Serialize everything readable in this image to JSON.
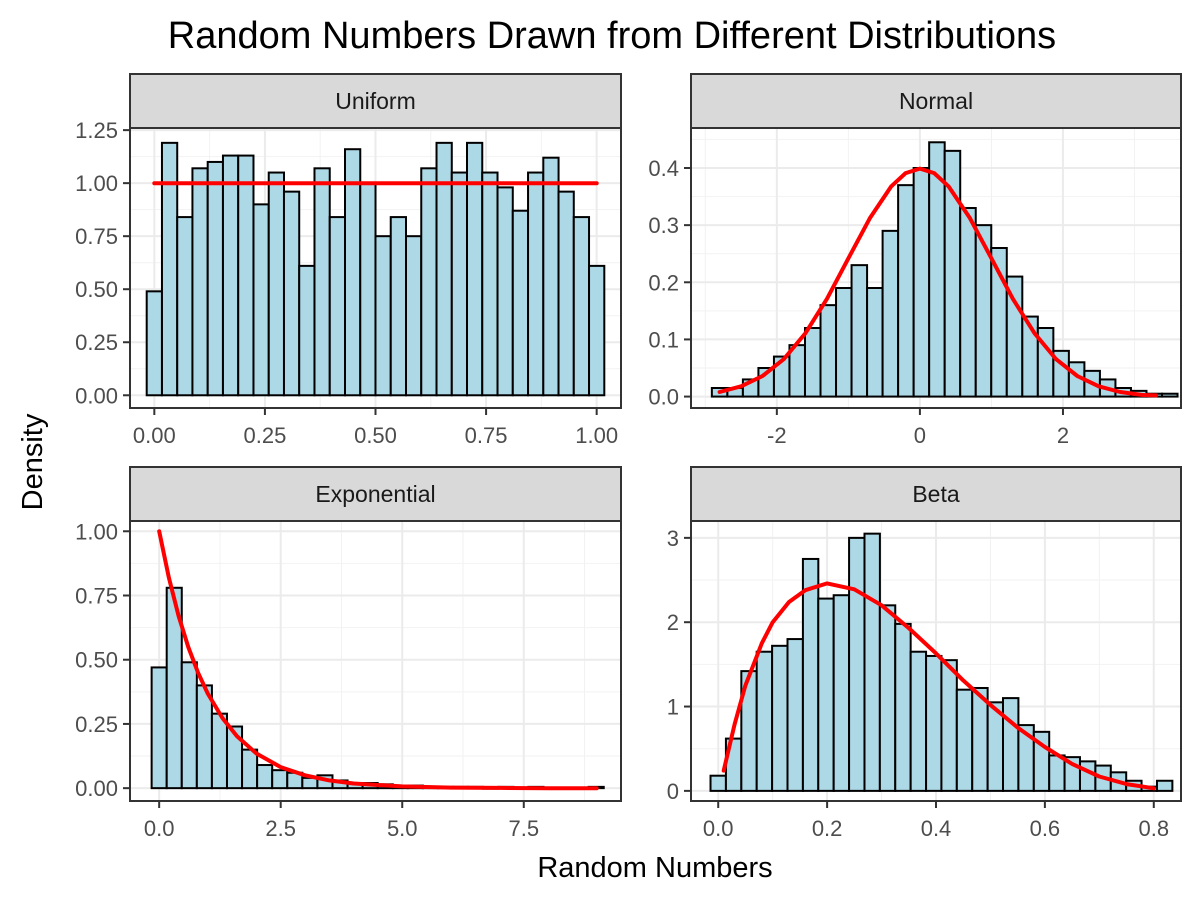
{
  "title": "Random Numbers Drawn from Different Distributions",
  "xlabel": "Random Numbers",
  "ylabel": "Density",
  "colors": {
    "bar_fill": "#add8e6",
    "bar_outline": "#000000",
    "density_line": "#ff0000",
    "strip_fill": "#d9d9d9"
  },
  "chart_data": [
    {
      "type": "bar",
      "panel": "Uniform",
      "xlim": [
        -0.055,
        1.055
      ],
      "ylim": [
        -0.06,
        1.26
      ],
      "x_ticks": [
        0.0,
        0.25,
        0.5,
        0.75,
        1.0
      ],
      "x_tick_labels": [
        "0.00",
        "0.25",
        "0.50",
        "0.75",
        "1.00"
      ],
      "y_ticks": [
        0.0,
        0.25,
        0.5,
        0.75,
        1.0,
        1.25
      ],
      "y_tick_labels": [
        "0.00",
        "0.25",
        "0.50",
        "0.75",
        "1.00",
        "1.25"
      ],
      "bin_centers": [
        0.0,
        0.0345,
        0.069,
        0.1034,
        0.1379,
        0.1724,
        0.2069,
        0.2414,
        0.2759,
        0.3103,
        0.3448,
        0.3793,
        0.4138,
        0.4483,
        0.4828,
        0.5172,
        0.5517,
        0.5862,
        0.6207,
        0.6552,
        0.6897,
        0.7241,
        0.7586,
        0.7931,
        0.8276,
        0.8621,
        0.8966,
        0.931,
        0.9655,
        1.0
      ],
      "values": [
        0.49,
        1.19,
        0.84,
        1.07,
        1.1,
        1.13,
        1.13,
        0.9,
        1.05,
        0.96,
        0.61,
        1.07,
        0.84,
        1.16,
        1.0,
        0.75,
        0.84,
        0.75,
        1.07,
        1.19,
        1.05,
        1.19,
        1.05,
        0.98,
        0.87,
        1.05,
        1.12,
        0.96,
        0.84,
        0.61
      ],
      "density_x": [
        0.0,
        1.0
      ],
      "density_y": [
        1.0,
        1.0
      ]
    },
    {
      "type": "bar",
      "panel": "Normal",
      "xlim": [
        -3.2,
        3.65
      ],
      "ylim": [
        -0.02,
        0.47
      ],
      "x_ticks": [
        -2,
        0,
        2
      ],
      "x_tick_labels": [
        "-2",
        "0",
        "2"
      ],
      "y_ticks": [
        0.0,
        0.1,
        0.2,
        0.3,
        0.4
      ],
      "y_tick_labels": [
        "0.0",
        "0.1",
        "0.2",
        "0.3",
        "0.4"
      ],
      "bin_centers": [
        -2.8,
        -2.583,
        -2.366,
        -2.149,
        -1.932,
        -1.715,
        -1.498,
        -1.281,
        -1.064,
        -0.847,
        -0.63,
        -0.413,
        -0.196,
        0.021,
        0.238,
        0.455,
        0.672,
        0.889,
        1.106,
        1.323,
        1.54,
        1.757,
        1.974,
        2.191,
        2.408,
        2.625,
        2.842,
        3.059,
        3.276,
        3.493
      ],
      "values": [
        0.015,
        0.015,
        0.03,
        0.05,
        0.07,
        0.09,
        0.12,
        0.16,
        0.19,
        0.23,
        0.19,
        0.29,
        0.37,
        0.4,
        0.445,
        0.43,
        0.33,
        0.3,
        0.26,
        0.21,
        0.14,
        0.12,
        0.08,
        0.06,
        0.045,
        0.03,
        0.015,
        0.01,
        0.005,
        0.005
      ],
      "density_x": [
        -2.8,
        -2.5,
        -2.2,
        -1.9,
        -1.6,
        -1.3,
        -1.0,
        -0.7,
        -0.4,
        -0.2,
        0.0,
        0.2,
        0.4,
        0.7,
        1.0,
        1.3,
        1.6,
        1.9,
        2.2,
        2.5,
        2.8,
        3.1,
        3.3
      ],
      "density_y": [
        0.008,
        0.018,
        0.036,
        0.066,
        0.111,
        0.171,
        0.242,
        0.312,
        0.368,
        0.391,
        0.399,
        0.391,
        0.368,
        0.312,
        0.242,
        0.171,
        0.111,
        0.066,
        0.036,
        0.018,
        0.008,
        0.003,
        0.002
      ]
    },
    {
      "type": "bar",
      "panel": "Exponential",
      "xlim": [
        -0.6,
        9.5
      ],
      "ylim": [
        -0.05,
        1.04
      ],
      "x_ticks": [
        0.0,
        2.5,
        5.0,
        7.5
      ],
      "x_tick_labels": [
        "0.0",
        "2.5",
        "5.0",
        "7.5"
      ],
      "y_ticks": [
        0.0,
        0.25,
        0.5,
        0.75,
        1.0
      ],
      "y_tick_labels": [
        "0.00",
        "0.25",
        "0.50",
        "0.75",
        "1.00"
      ],
      "bin_centers": [
        0.0,
        0.31,
        0.62,
        0.93,
        1.24,
        1.55,
        1.86,
        2.17,
        2.48,
        2.79,
        3.1,
        3.41,
        3.72,
        4.03,
        4.34,
        4.65,
        4.96,
        5.27,
        5.58,
        5.89,
        6.2,
        6.51,
        6.82,
        7.13,
        7.44,
        7.75,
        8.06,
        8.37,
        8.68,
        8.99
      ],
      "values": [
        0.47,
        0.78,
        0.49,
        0.4,
        0.29,
        0.24,
        0.15,
        0.09,
        0.07,
        0.06,
        0.04,
        0.05,
        0.03,
        0.02,
        0.02,
        0.015,
        0.01,
        0.01,
        0.005,
        0.005,
        0.005,
        0.005,
        0.0,
        0.005,
        0.0,
        0.005,
        0.0,
        0.0,
        0.0,
        0.005
      ],
      "density_x": [
        0.0,
        0.2,
        0.4,
        0.6,
        0.8,
        1.0,
        1.3,
        1.6,
        2.0,
        2.5,
        3.0,
        3.5,
        4.0,
        5.0,
        6.0,
        7.0,
        8.0,
        9.0
      ],
      "density_y": [
        1.0,
        0.819,
        0.67,
        0.549,
        0.449,
        0.368,
        0.273,
        0.202,
        0.135,
        0.082,
        0.05,
        0.03,
        0.018,
        0.007,
        0.002,
        0.001,
        0.0,
        0.0
      ],
      "values_note_free": true
    },
    {
      "type": "bar",
      "panel": "Beta",
      "xlim": [
        -0.05,
        0.85
      ],
      "ylim": [
        -0.12,
        3.2
      ],
      "x_ticks": [
        0.0,
        0.2,
        0.4,
        0.6,
        0.8
      ],
      "x_tick_labels": [
        "0.0",
        "0.2",
        "0.4",
        "0.6",
        "0.8"
      ],
      "y_ticks": [
        0,
        1,
        2,
        3
      ],
      "y_tick_labels": [
        "0",
        "1",
        "2",
        "3"
      ],
      "bin_centers": [
        0.0,
        0.0283,
        0.0566,
        0.0848,
        0.1131,
        0.1414,
        0.1697,
        0.1979,
        0.2262,
        0.2545,
        0.2828,
        0.311,
        0.3393,
        0.3676,
        0.3959,
        0.4241,
        0.4524,
        0.4807,
        0.509,
        0.5372,
        0.5655,
        0.5938,
        0.6221,
        0.6503,
        0.6786,
        0.7069,
        0.7352,
        0.7634,
        0.7917,
        0.82
      ],
      "values": [
        0.18,
        0.62,
        1.42,
        1.65,
        1.72,
        1.8,
        2.75,
        2.28,
        2.32,
        3.0,
        3.05,
        2.2,
        1.98,
        1.65,
        1.6,
        1.55,
        1.2,
        1.22,
        1.05,
        1.1,
        0.78,
        0.7,
        0.42,
        0.4,
        0.35,
        0.3,
        0.22,
        0.12,
        0.05,
        0.12
      ],
      "density_x": [
        0.01,
        0.03,
        0.05,
        0.08,
        0.1,
        0.13,
        0.16,
        0.2,
        0.25,
        0.3,
        0.35,
        0.4,
        0.45,
        0.5,
        0.55,
        0.6,
        0.65,
        0.7,
        0.75,
        0.8
      ],
      "density_y": [
        0.24,
        0.79,
        1.25,
        1.75,
        2.0,
        2.24,
        2.38,
        2.46,
        2.39,
        2.2,
        1.93,
        1.63,
        1.31,
        1.02,
        0.75,
        0.52,
        0.32,
        0.17,
        0.08,
        0.03
      ]
    }
  ]
}
